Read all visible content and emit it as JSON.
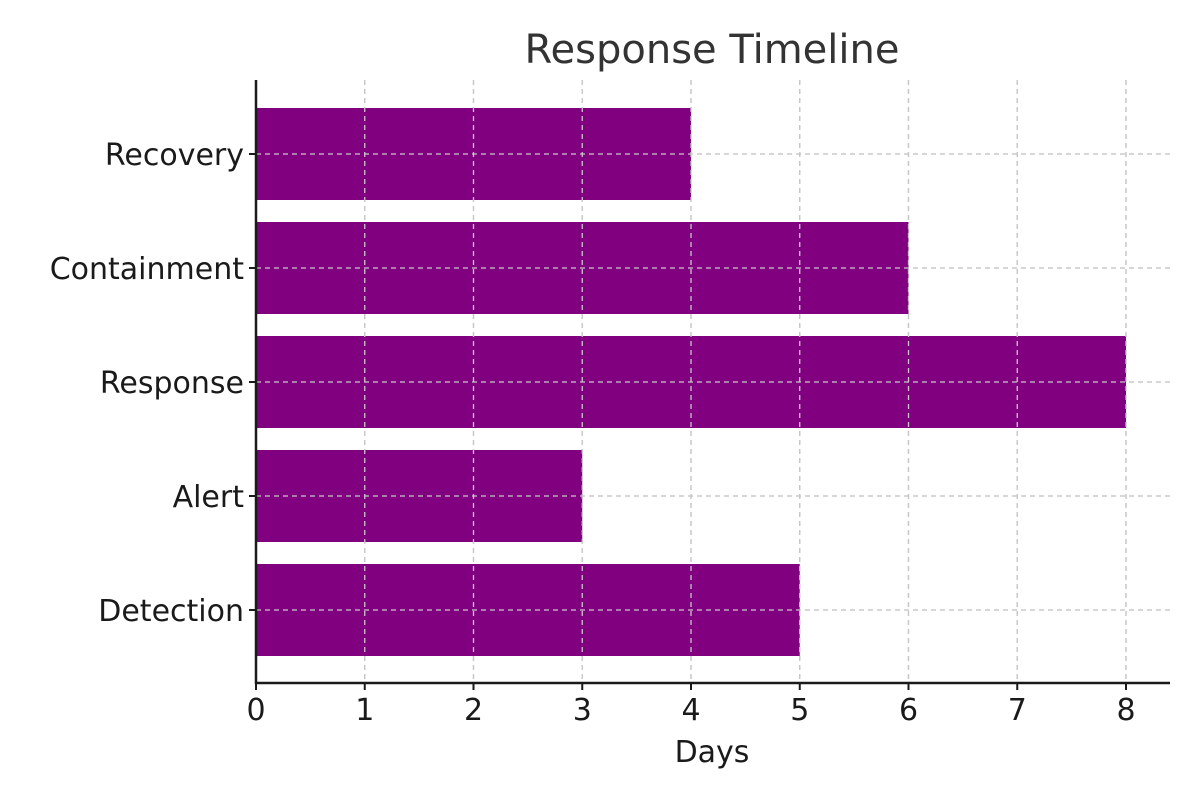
{
  "chart_data": {
    "type": "bar",
    "orientation": "horizontal",
    "title": "Response Timeline",
    "xlabel": "Days",
    "ylabel": "",
    "categories": [
      "Detection",
      "Alert",
      "Response",
      "Containment",
      "Recovery"
    ],
    "values": [
      5,
      3,
      8,
      6,
      4
    ],
    "xlim": [
      0,
      8.4
    ],
    "x_ticks": [
      "0",
      "1",
      "2",
      "3",
      "4",
      "5",
      "6",
      "7",
      "8"
    ],
    "grid": true,
    "bar_color": "#800080"
  }
}
